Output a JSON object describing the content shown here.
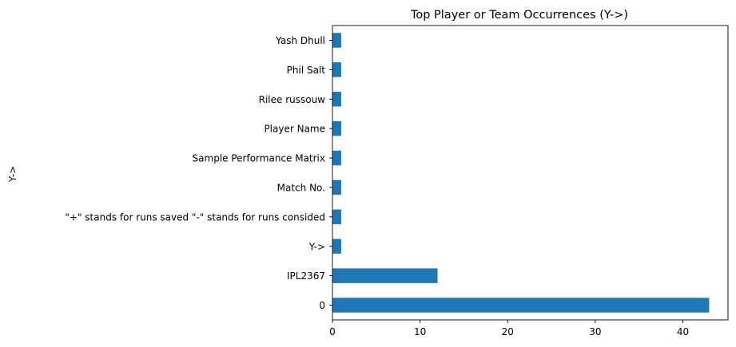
{
  "chart_data": {
    "type": "bar",
    "orientation": "horizontal",
    "title": "Top Player or Team Occurrences (Y->)",
    "xlabel": "",
    "ylabel": "Y->",
    "categories": [
      "0",
      "IPL2367",
      "Y->",
      "\"+\" stands for runs saved \"-\" stands for runs consided",
      "Match No.",
      "Sample Performance Matrix",
      "Player Name",
      "Rilee russouw",
      "Phil Salt",
      "Yash Dhull"
    ],
    "values": [
      43,
      12,
      1,
      1,
      1,
      1,
      1,
      1,
      1,
      1
    ],
    "xlim": [
      0,
      45.15
    ],
    "xticks": [
      0,
      10,
      20,
      30,
      40
    ],
    "grid": false,
    "bar_color": "#1f77b4"
  }
}
